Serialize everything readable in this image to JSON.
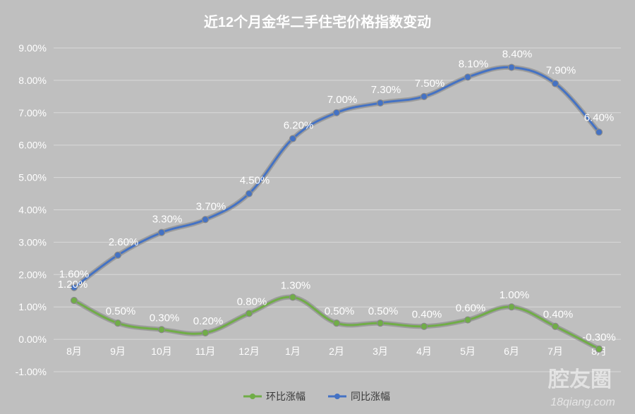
{
  "chart_data": {
    "type": "line",
    "title": "近12个月金华二手住宅价格指数变动",
    "categories": [
      "8月",
      "9月",
      "10月",
      "11月",
      "12月",
      "1月",
      "2月",
      "3月",
      "4月",
      "5月",
      "6月",
      "7月",
      "8月"
    ],
    "ylim": [
      -1,
      9
    ],
    "yticks": [
      "-1.00%",
      "0.00%",
      "1.00%",
      "2.00%",
      "3.00%",
      "4.00%",
      "5.00%",
      "6.00%",
      "7.00%",
      "8.00%",
      "9.00%"
    ],
    "grid": true,
    "legend": "bottom",
    "series": [
      {
        "name": "环比涨幅",
        "color": "#70ad47",
        "values": [
          1.2,
          0.5,
          0.3,
          0.2,
          0.8,
          1.3,
          0.5,
          0.5,
          0.4,
          0.6,
          1.0,
          0.4,
          -0.3
        ],
        "labels": [
          "1.20%",
          "0.50%",
          "0.30%",
          "0.20%",
          "0.80%",
          "1.30%",
          "0.50%",
          "0.50%",
          "0.40%",
          "0.60%",
          "1.00%",
          "0.40%",
          "-0.30%"
        ]
      },
      {
        "name": "同比涨幅",
        "color": "#4472c4",
        "values": [
          1.6,
          2.6,
          3.3,
          3.7,
          4.5,
          6.2,
          7.0,
          7.3,
          7.5,
          8.1,
          8.4,
          7.9,
          6.4
        ],
        "labels": [
          "1.60%",
          "2.60%",
          "3.30%",
          "3.70%",
          "4.50%",
          "6.20%",
          "7.00%",
          "7.30%",
          "7.50%",
          "8.10%",
          "8.40%",
          "7.90%",
          "6.40%"
        ]
      }
    ]
  },
  "watermark": {
    "brand": "腔友圈",
    "url": "18qiang.com"
  }
}
